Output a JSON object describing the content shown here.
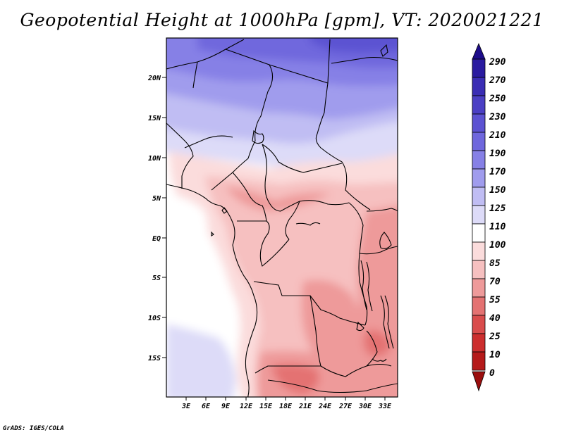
{
  "title": "Geopotential Height at 1000hPa [gpm], VT: 2020021221",
  "footer": "GrADS: IGES/COLA",
  "map": {
    "lat_labels": [
      "20N",
      "15N",
      "10N",
      "5N",
      "EQ",
      "5S",
      "10S",
      "15S"
    ],
    "lon_labels": [
      "3E",
      "6E",
      "9E",
      "12E",
      "15E",
      "18E",
      "21E",
      "24E",
      "27E",
      "30E",
      "33E"
    ]
  },
  "colorbar": {
    "levels": [
      "290",
      "270",
      "250",
      "230",
      "210",
      "190",
      "170",
      "150",
      "125",
      "110",
      "100",
      "85",
      "70",
      "55",
      "40",
      "25",
      "10",
      "0"
    ],
    "colors": [
      "#1d0c8a",
      "#2a1ba0",
      "#3a2db4",
      "#4b3fc4",
      "#5c52d2",
      "#6f67dd",
      "#8680e6",
      "#a09ced",
      "#c0bdf3",
      "#dddbf8",
      "#ffffff",
      "#fbdcdc",
      "#f6c0c0",
      "#ee9a9a",
      "#e47272",
      "#d94c4c",
      "#cc2e2e",
      "#b51a1a",
      "#9a0e0e"
    ]
  },
  "colors": {
    "accent_blue": "#7a72e2",
    "accent_red": "#e8a0a0",
    "border": "#000000"
  }
}
